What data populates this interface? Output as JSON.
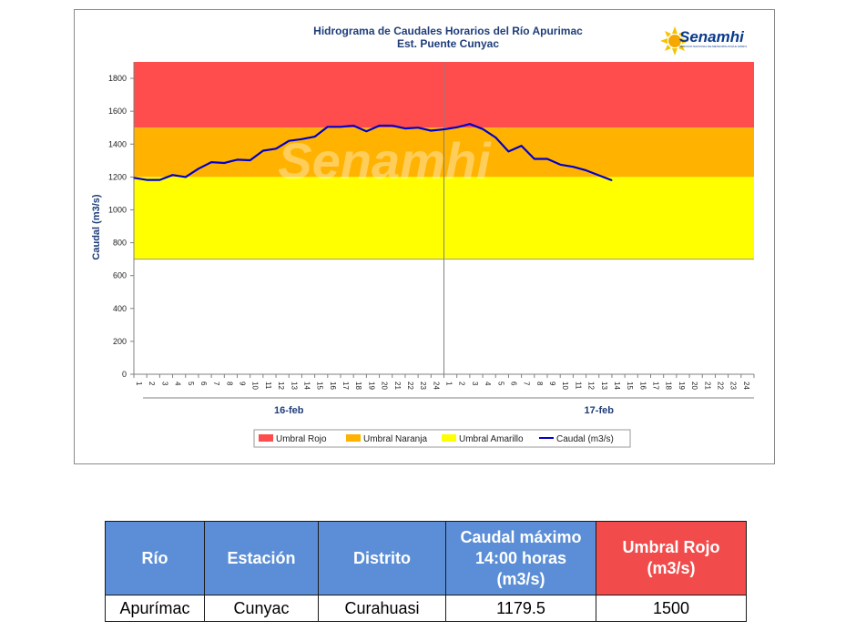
{
  "chart_data": {
    "type": "line",
    "title": "Hidrograma de Caudales Horarios del Río Apurimac",
    "subtitle": "Est. Puente Cunyac",
    "ylabel": "Caudal (m3/s)",
    "ylim": [
      0,
      1900
    ],
    "yticks": [
      0,
      200,
      400,
      600,
      800,
      1000,
      1200,
      1400,
      1600,
      1800
    ],
    "x_hour_labels": [
      "1",
      "2",
      "3",
      "4",
      "5",
      "6",
      "7",
      "8",
      "9",
      "10",
      "11",
      "12",
      "13",
      "14",
      "15",
      "16",
      "17",
      "18",
      "19",
      "20",
      "21",
      "22",
      "23",
      "24"
    ],
    "day_labels": [
      "16-feb",
      "17-feb"
    ],
    "bands": [
      {
        "name": "Umbral Rojo",
        "from": 1500,
        "to": 1900,
        "color": "#ff4d4d"
      },
      {
        "name": "Umbral Naranja",
        "from": 1200,
        "to": 1500,
        "color": "#ffb300"
      },
      {
        "name": "Umbral Amarillo",
        "from": 700,
        "to": 1200,
        "color": "#ffff00"
      }
    ],
    "series": [
      {
        "name": "Caudal (m3/s)",
        "color": "#0000cc",
        "x_hours": [
          1,
          2,
          3,
          4,
          5,
          6,
          7,
          8,
          9,
          10,
          11,
          12,
          13,
          14,
          15,
          16,
          17,
          18,
          19,
          20,
          21,
          22,
          23,
          24,
          25,
          26,
          27,
          28,
          29,
          30,
          31,
          32,
          33,
          34,
          35,
          36,
          37,
          38
        ],
        "values": [
          1195,
          1182,
          1182,
          1212,
          1200,
          1250,
          1290,
          1285,
          1305,
          1302,
          1360,
          1372,
          1420,
          1430,
          1445,
          1505,
          1505,
          1512,
          1478,
          1512,
          1512,
          1495,
          1500,
          1482,
          1490,
          1502,
          1522,
          1492,
          1440,
          1355,
          1390,
          1310,
          1310,
          1275,
          1262,
          1240,
          1210,
          1180
        ]
      }
    ],
    "legend_position": "bottom",
    "watermark": "Senamhi",
    "grid": false
  },
  "logo": {
    "name": "Senamhi",
    "tagline": "SERVICIO NACIONAL DE METEOROLOGÍA E HIDROLOGÍA DEL PERÚ"
  },
  "table": {
    "headers": [
      "Río",
      "Estación",
      "Distrito",
      "Caudal máximo 14:00 horas (m3/s)",
      "Umbral Rojo (m3/s)"
    ],
    "header_lines": {
      "caudal": [
        "Caudal máximo",
        "14:00 horas",
        "(m3/s)"
      ],
      "umbral": [
        "Umbral Rojo",
        "(m3/s)"
      ]
    },
    "row": [
      "Apurímac",
      "Cunyac",
      "Curahuasi",
      "1179.5",
      "1500"
    ],
    "colors": {
      "header": "#5b8ed6",
      "header_red": "#f24b4b"
    }
  }
}
